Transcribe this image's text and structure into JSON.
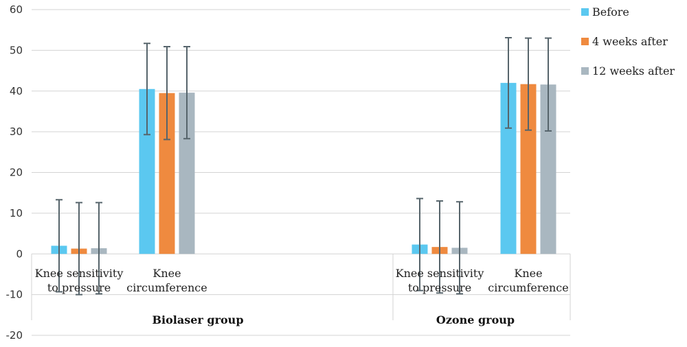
{
  "chart_data": {
    "type": "bar",
    "ylim": [
      -20,
      60
    ],
    "yticks": [
      -20,
      -10,
      0,
      10,
      20,
      30,
      40,
      50,
      60
    ],
    "grid": true,
    "legend_position": "top-right",
    "groups": [
      {
        "label": "Biolaser group",
        "categories": [
          {
            "label_lines": [
              "Knee sensitivity",
              "to pressure"
            ]
          },
          {
            "label_lines": [
              "Knee",
              "circumference"
            ]
          }
        ]
      },
      {
        "label": "Ozone group",
        "categories": [
          {
            "label_lines": [
              "Knee sensitivity",
              "to pressure"
            ]
          },
          {
            "label_lines": [
              "Knee",
              "circumference"
            ]
          }
        ]
      }
    ],
    "series": [
      {
        "name": "Before",
        "color": "#5bc8f0",
        "values": [
          2.0,
          40.5,
          2.3,
          42.0
        ],
        "errors": [
          11.3,
          11.2,
          11.3,
          11.1
        ]
      },
      {
        "name": "4 weeks after",
        "color": "#ef8a3f",
        "values": [
          1.3,
          39.5,
          1.7,
          41.7
        ],
        "errors": [
          11.3,
          11.4,
          11.3,
          11.3
        ]
      },
      {
        "name": "12 weeks after",
        "color": "#a9b7c0",
        "values": [
          1.4,
          39.6,
          1.5,
          41.6
        ],
        "errors": [
          11.2,
          11.3,
          11.3,
          11.4
        ]
      }
    ]
  }
}
